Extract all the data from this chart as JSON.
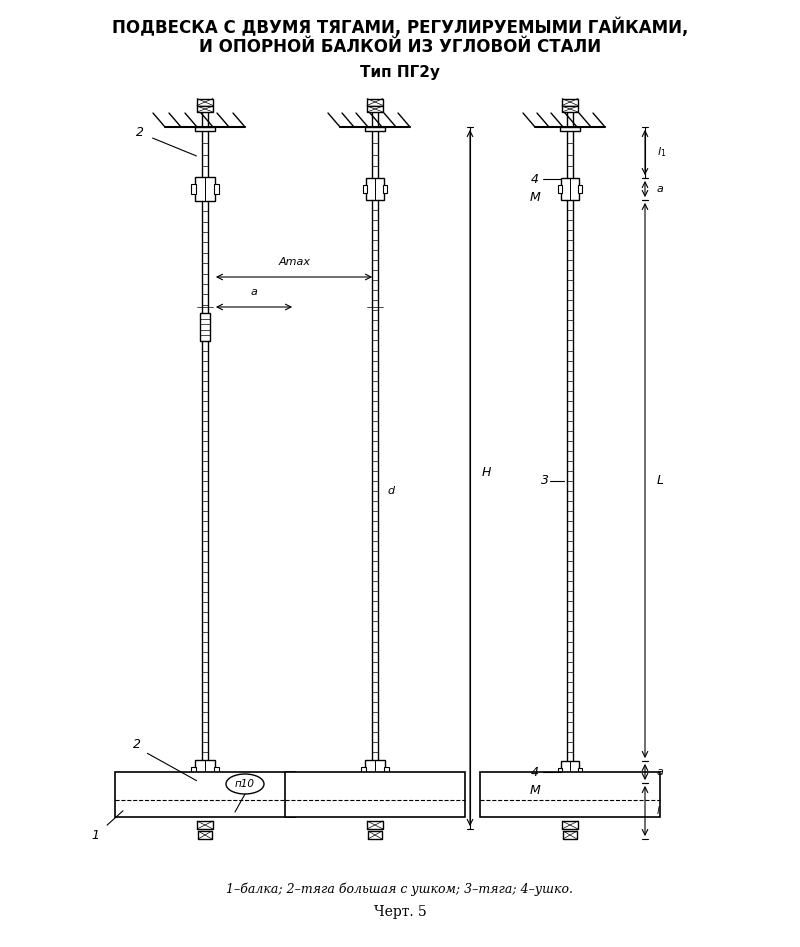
{
  "title_line1": "ПОДВЕСКА С ДВУМЯ ТЯГАМИ, РЕГУЛИРУЕМЫМИ ГАЙКАМИ,",
  "title_line2": "И ОПОРНОЙ БАЛКОЙ ИЗ УГЛОВОЙ СТАЛИ",
  "subtitle": "Тип ПГ2у",
  "caption": "1–балка; 2–тяга большая с ушком; 3–тяга; 4–ушко.",
  "figure_label": "Черт. 5",
  "bg_color": "#ffffff",
  "line_color": "#000000",
  "label_2_top": "2",
  "label_2_bottom": "2",
  "label_1": "1",
  "label_3": "3",
  "label_4_top": "4",
  "label_4_bottom": "4",
  "label_M_top": "М",
  "label_M_bottom": "М",
  "label_Amax": "Amax",
  "label_a_left": "a",
  "label_d": "d",
  "label_H": "H",
  "label_L": "L",
  "label_L1": "l₁",
  "label_a_top": "a",
  "label_a_bottom": "a",
  "label_p10": "п10"
}
